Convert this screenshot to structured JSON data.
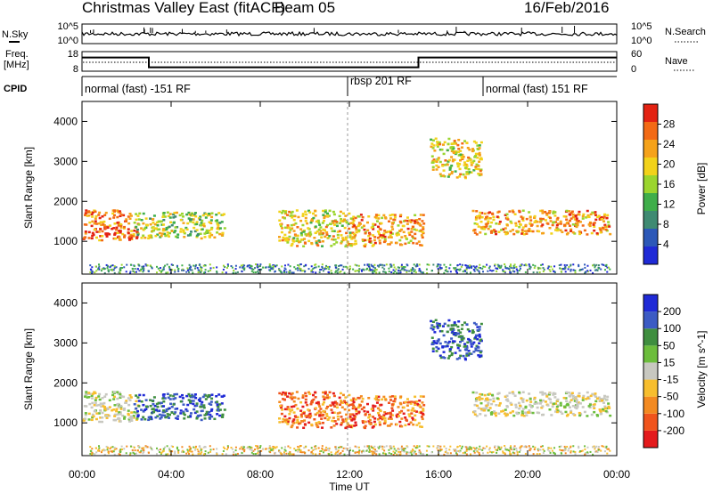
{
  "header": {
    "title": "Christmas Valley East (fitACF)",
    "beam": "Beam 05",
    "date": "16/Feb/2016"
  },
  "noise_panel": {
    "left_label": "N.Sky",
    "left_ticks": [
      "10^5",
      "10^0"
    ],
    "right_ticks": [
      "10^5",
      "10^0"
    ],
    "right_label": "N.Search"
  },
  "freq_panel": {
    "left_label_1": "Freq.",
    "left_label_2": "[MHz]",
    "left_ticks": [
      "18",
      "8"
    ],
    "right_ticks": [
      "60",
      "0"
    ],
    "right_label": "Nave"
  },
  "cpid": {
    "label": "CPID",
    "modes": [
      {
        "text": "normal (fast) -151 RF"
      },
      {
        "text": "rbsp 201 RF"
      },
      {
        "text": "normal (fast) 151 RF"
      }
    ]
  },
  "colors": {
    "power_scale": [
      "#1f2ad6",
      "#2c58b8",
      "#3f8a72",
      "#3fae4a",
      "#9bd52e",
      "#f2d21a",
      "#f5a21a",
      "#f36a15",
      "#e32212"
    ],
    "velocity_scale": [
      "#e41a1c",
      "#f0541c",
      "#f38a21",
      "#f7be2e",
      "#c8c8c0",
      "#6cbd3c",
      "#3f8e3f",
      "#3c5bc4",
      "#1f2ad6"
    ]
  },
  "chart_data": {
    "type": "heatmap",
    "xlabel": "Time UT",
    "x_ticks": [
      "00:00",
      "04:00",
      "08:00",
      "12:00",
      "16:00",
      "20:00",
      "00:00"
    ],
    "x_range_hours": [
      0,
      24
    ],
    "panels": [
      {
        "name": "power",
        "ylabel": "Slant Range [km]",
        "y_ticks": [
          "1000",
          "2000",
          "3000",
          "4000"
        ],
        "y_range_km": [
          180,
          4500
        ],
        "colorbar_label": "Power [dB]",
        "colorbar_ticks": [
          "4",
          "8",
          "12",
          "16",
          "20",
          "24",
          "28"
        ],
        "colorbar_range": [
          0,
          32
        ]
      },
      {
        "name": "velocity",
        "ylabel": "Slant Range [km]",
        "y_ticks": [
          "1000",
          "2000",
          "3000",
          "4000"
        ],
        "y_range_km": [
          180,
          4500
        ],
        "colorbar_label": "Velocity [m s^-1]",
        "colorbar_ticks": [
          "200",
          "100",
          "50",
          "15",
          "-15",
          "-50",
          "-100",
          "-200"
        ]
      }
    ],
    "freq_trace_mhz": [
      {
        "from_hour": 0,
        "to_hour": 3,
        "value": 15
      },
      {
        "from_hour": 3,
        "to_hour": 15.1,
        "value": 10
      },
      {
        "from_hour": 15.1,
        "to_hour": 24,
        "value": 15
      }
    ],
    "scatter_regions": [
      {
        "t0": 0,
        "t1": 2.5,
        "r0": 1050,
        "r1": 1800,
        "power": 26,
        "velocity": "grey"
      },
      {
        "t0": 2.3,
        "t1": 6.4,
        "r0": 1100,
        "r1": 1750,
        "power": 14,
        "velocity": "blue"
      },
      {
        "t0": 8.8,
        "t1": 12,
        "r0": 900,
        "r1": 1800,
        "power": 20,
        "velocity": "red"
      },
      {
        "t0": 12,
        "t1": 15.3,
        "r0": 900,
        "r1": 1700,
        "power": 24,
        "velocity": "red"
      },
      {
        "t0": 17.5,
        "t1": 23.7,
        "r0": 1200,
        "r1": 1800,
        "power": 22,
        "velocity": "grey"
      },
      {
        "t0": 15.6,
        "t1": 17.9,
        "r0": 2600,
        "r1": 3600,
        "power": 18,
        "velocity": "blue"
      }
    ]
  }
}
